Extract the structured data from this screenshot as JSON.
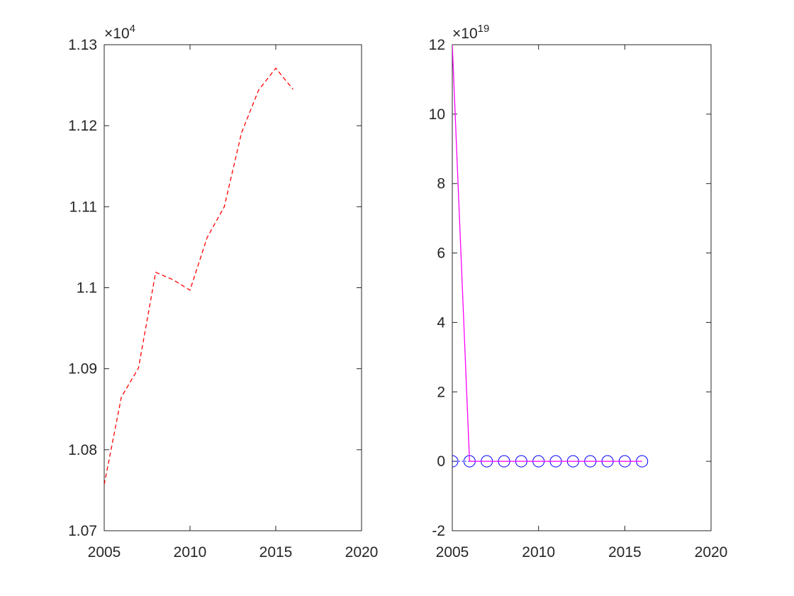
{
  "chart_data": [
    {
      "type": "line",
      "title": "",
      "xlabel": "",
      "ylabel": "",
      "xlim": [
        2005,
        2020
      ],
      "ylim": [
        1.07,
        1.13
      ],
      "xticks": [
        2005,
        2010,
        2015,
        2020
      ],
      "xtick_labels": [
        "2005",
        "2010",
        "2015",
        "2020"
      ],
      "yticks": [
        1.07,
        1.08,
        1.09,
        1.1,
        1.11,
        1.12,
        1.13
      ],
      "ytick_labels": [
        "1.07",
        "1.08",
        "1.09",
        "1.1",
        "1.11",
        "1.12",
        "1.13"
      ],
      "y_multiplier": "×10",
      "y_multiplier_exp": "4",
      "grid": false,
      "series": [
        {
          "color": "#ff0000",
          "style": "dashed",
          "x": [
            2005,
            2006,
            2007,
            2008,
            2009,
            2010,
            2011,
            2012,
            2013,
            2014,
            2015,
            2016
          ],
          "y": [
            1.0757,
            1.0865,
            1.0901,
            1.1019,
            1.101,
            1.0997,
            1.1062,
            1.11,
            1.1191,
            1.1244,
            1.1271,
            1.1245
          ]
        }
      ]
    },
    {
      "type": "line",
      "title": "",
      "xlabel": "",
      "ylabel": "",
      "xlim": [
        2005,
        2020
      ],
      "ylim": [
        -2,
        12
      ],
      "xticks": [
        2005,
        2010,
        2015,
        2020
      ],
      "xtick_labels": [
        "2005",
        "2010",
        "2015",
        "2020"
      ],
      "yticks": [
        -2,
        0,
        2,
        4,
        6,
        8,
        10,
        12
      ],
      "ytick_labels": [
        "-2",
        "0",
        "2",
        "4",
        "6",
        "8",
        "10",
        "12"
      ],
      "y_multiplier": "×10",
      "y_multiplier_exp": "19",
      "grid": false,
      "series": [
        {
          "color": "#0000ff",
          "style": "dotted",
          "marker": "circle",
          "x": [
            2005,
            2006,
            2007,
            2008,
            2009,
            2010,
            2011,
            2012,
            2013,
            2014,
            2015,
            2016
          ],
          "y": [
            0,
            0,
            0,
            0,
            0,
            0,
            0,
            0,
            0,
            0,
            0,
            0
          ]
        },
        {
          "color": "#ff00ff",
          "style": "solid",
          "x": [
            2005,
            2006,
            2007,
            2008,
            2009,
            2010,
            2011,
            2012,
            2013,
            2014,
            2015,
            2016
          ],
          "y": [
            12,
            0,
            0,
            0,
            0,
            0,
            0,
            0,
            0,
            0,
            0,
            0
          ]
        }
      ]
    }
  ]
}
